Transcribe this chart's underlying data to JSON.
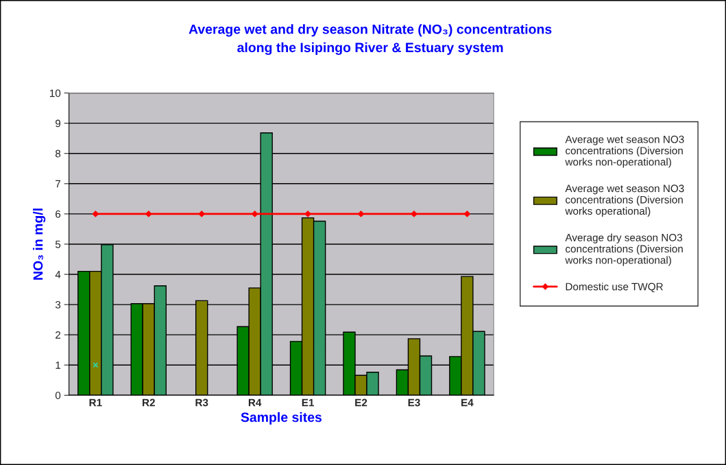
{
  "chart_data": {
    "type": "bar",
    "title": "Average wet and dry season Nitrate (NO₃) concentrations\nalong the Isipingo River & Estuary system",
    "xlabel": "Sample sites",
    "ylabel": "NO₃ in mg/l",
    "categories": [
      "R1",
      "R2",
      "R3",
      "R4",
      "E1",
      "E2",
      "E3",
      "E4"
    ],
    "series": [
      {
        "name": "Average wet season NO3\nconcentrations (Diversion\nworks non-operational)",
        "color": "#008000",
        "values": [
          4.1,
          3.03,
          null,
          2.27,
          1.78,
          2.09,
          0.84,
          1.28
        ]
      },
      {
        "name": "Average wet season NO3\nconcentrations (Diversion\nworks operational)",
        "color": "#808000",
        "values": [
          4.1,
          3.03,
          3.13,
          3.55,
          5.87,
          0.66,
          1.87,
          3.93
        ]
      },
      {
        "name": "Average dry season NO3\nconcentrations (Diversion\nworks non-operational)",
        "color": "#339966",
        "values": [
          4.98,
          3.62,
          null,
          8.68,
          5.76,
          0.76,
          1.3,
          2.11
        ]
      },
      {
        "name": "Domestic use TWQR",
        "color": "#ff0000",
        "type": "line",
        "marker": "diamond",
        "values": [
          6,
          6,
          6,
          6,
          6,
          6,
          6,
          6
        ]
      },
      {
        "color": "#33cc99",
        "type": "scatter",
        "marker": "cross",
        "values": [
          1,
          null,
          null,
          null,
          null,
          null,
          null,
          null
        ]
      }
    ],
    "ylim": [
      0,
      10
    ],
    "yticks": [
      0,
      1,
      2,
      3,
      4,
      5,
      6,
      7,
      8,
      9,
      10
    ],
    "grid": "y",
    "legend": "right"
  }
}
